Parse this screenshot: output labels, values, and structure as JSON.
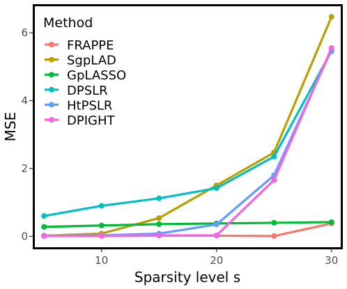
{
  "chart_data": {
    "type": "line",
    "xlabel": "Sparsity level s",
    "ylabel": "MSE",
    "x": [
      5,
      10,
      15,
      20,
      25,
      30
    ],
    "xlim": [
      4.2,
      30.8
    ],
    "ylim": [
      -0.32,
      6.78
    ],
    "xticks": [
      10,
      20,
      30
    ],
    "yticks": [
      0,
      2,
      4,
      6
    ],
    "grid": false,
    "legend": {
      "title": "Method",
      "position": "top-left"
    },
    "series": [
      {
        "name": "FRAPPE",
        "color": "#F8766D",
        "values": [
          0.01,
          0.01,
          0.02,
          0.02,
          0.01,
          0.38
        ]
      },
      {
        "name": "SgpLAD",
        "color": "#B79F00",
        "values": [
          0.02,
          0.08,
          0.54,
          1.5,
          2.47,
          6.47
        ]
      },
      {
        "name": "GpLASSO",
        "color": "#00BA38",
        "values": [
          0.28,
          0.32,
          0.36,
          0.38,
          0.4,
          0.42
        ]
      },
      {
        "name": "DPSLR",
        "color": "#00BFC4",
        "values": [
          0.6,
          0.9,
          1.12,
          1.42,
          2.35,
          5.46
        ]
      },
      {
        "name": "HtPSLR",
        "color": "#619CFF",
        "values": [
          0.02,
          0.03,
          0.08,
          0.35,
          1.8,
          5.5
        ]
      },
      {
        "name": "DPIGHT",
        "color": "#F564E3",
        "values": [
          0.01,
          0.02,
          0.03,
          0.03,
          1.66,
          5.55
        ]
      }
    ]
  }
}
